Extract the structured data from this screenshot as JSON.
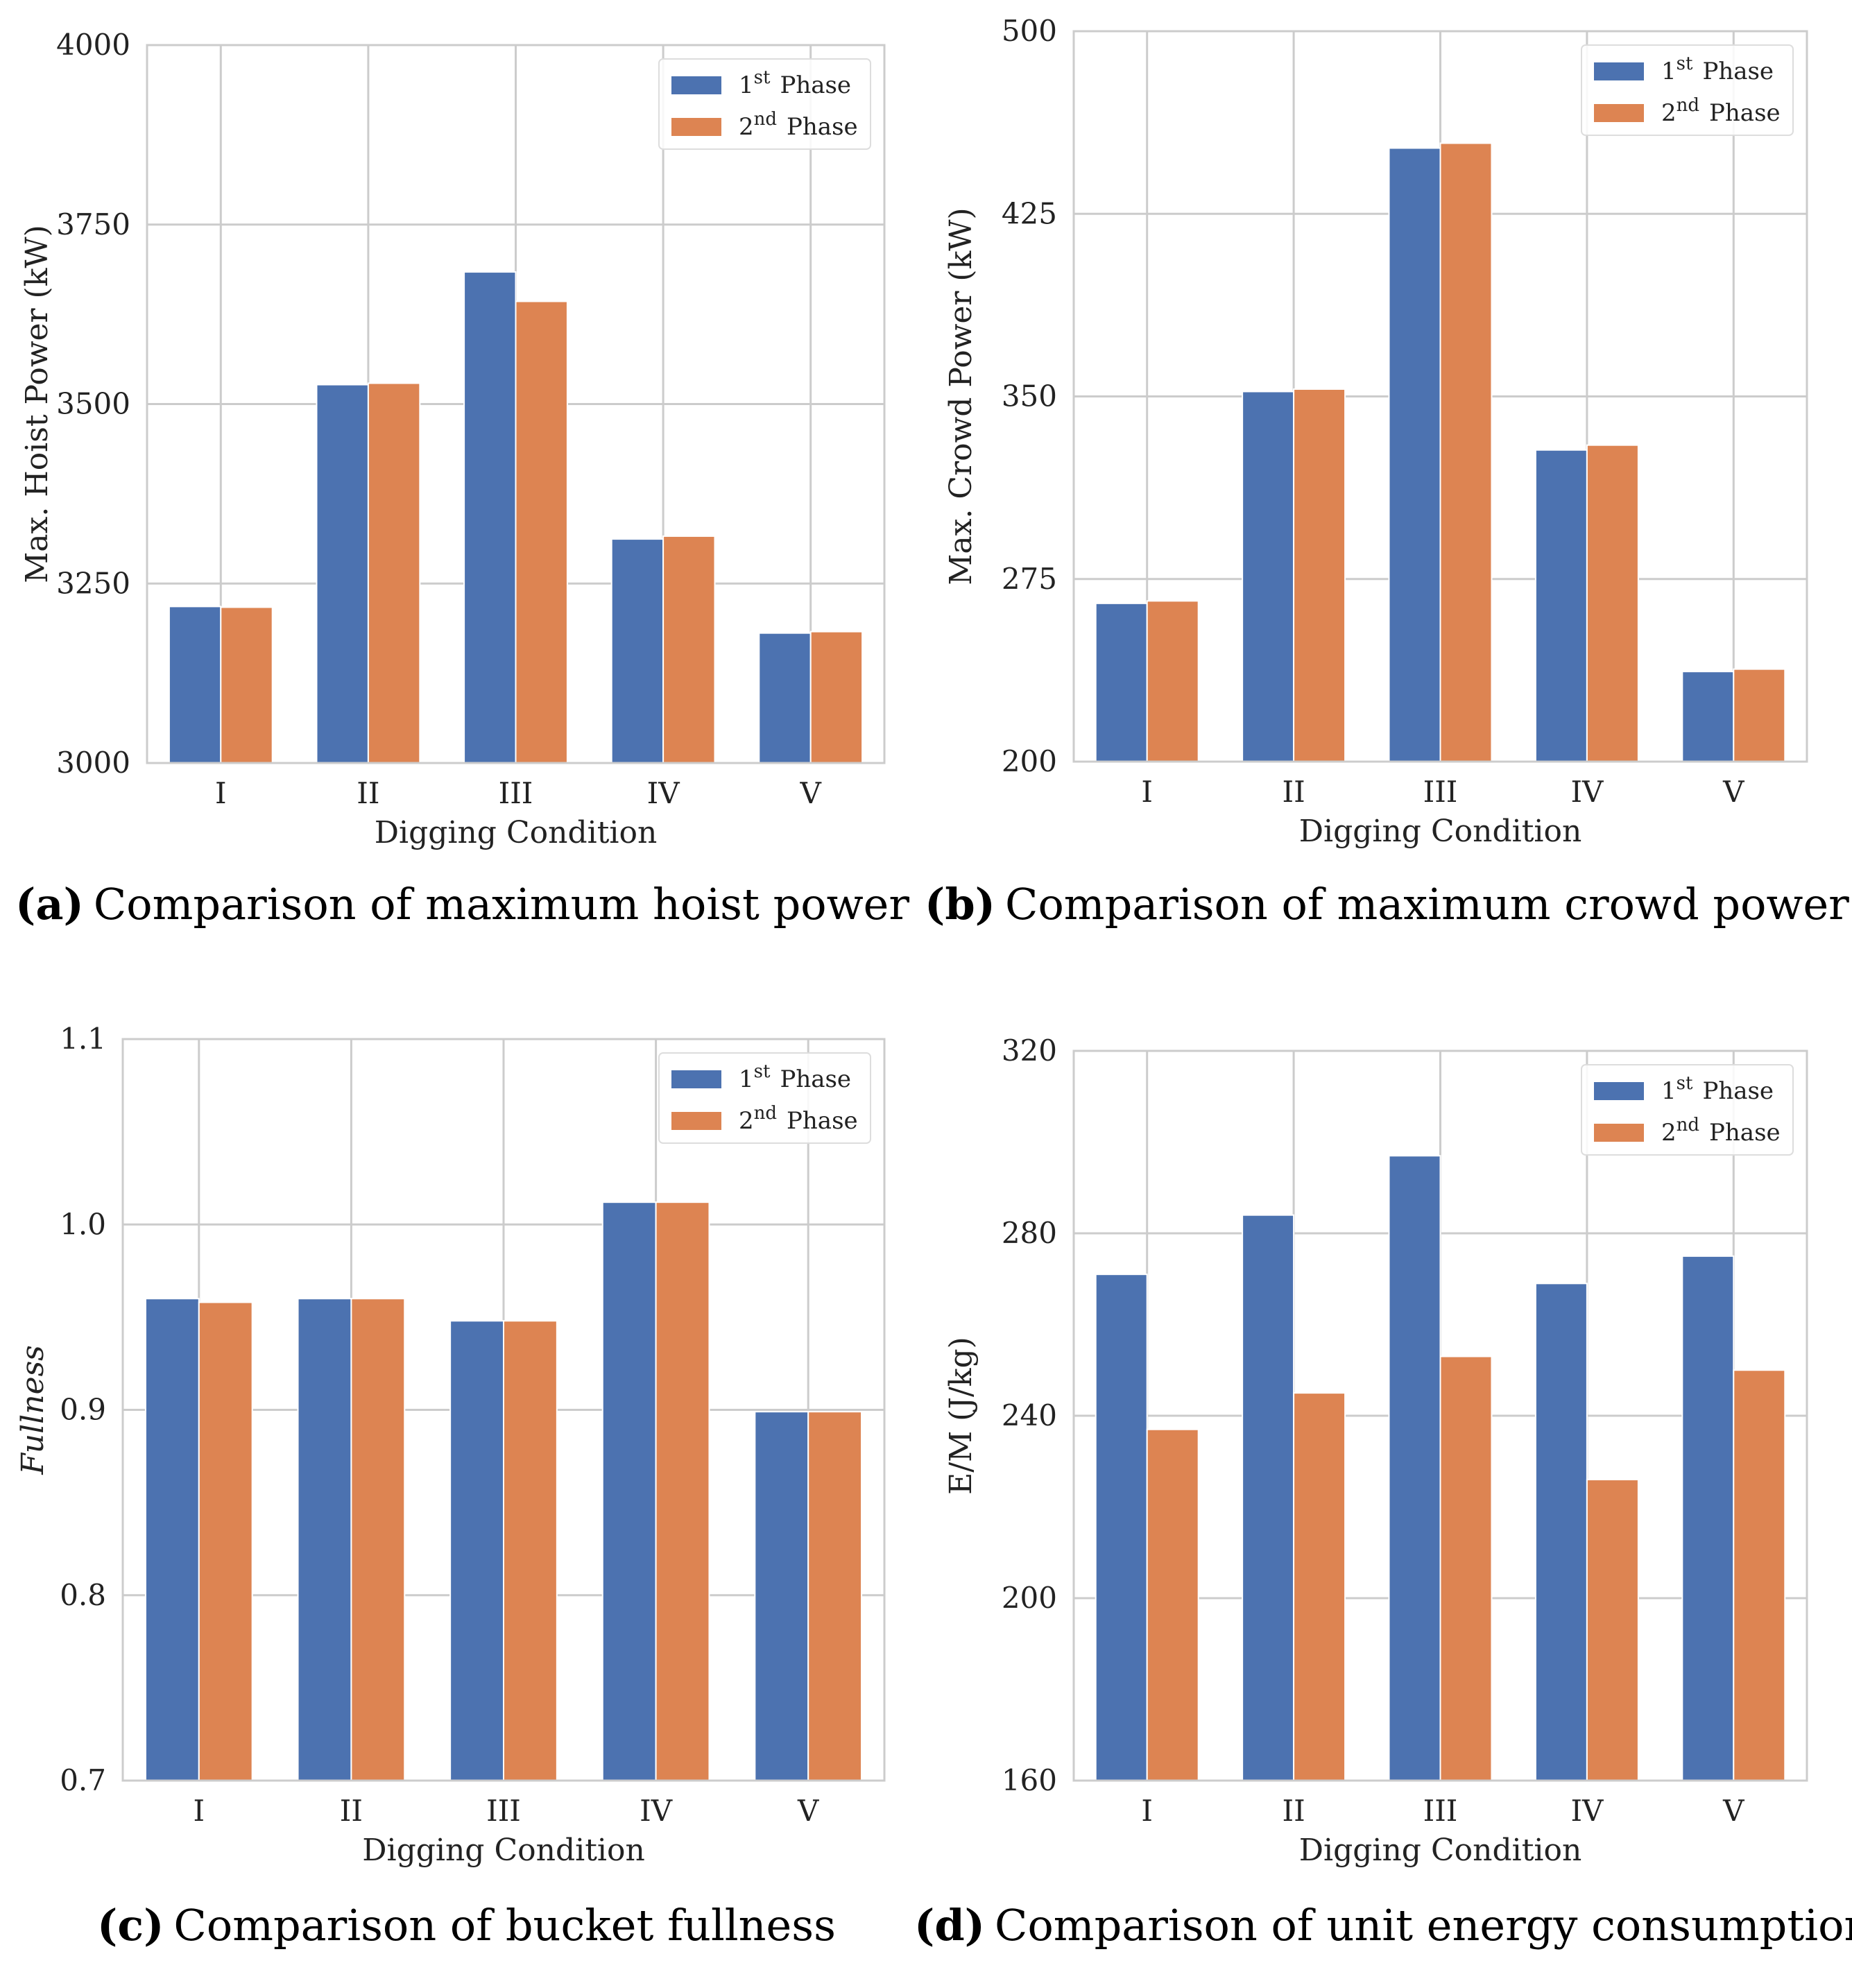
{
  "figure": {
    "colors": {
      "phase1": "#4C72B0",
      "phase2": "#DD8452",
      "grid": "#CCCCCC",
      "frame": "#CCCCCC"
    },
    "legend": {
      "phase1_prefix": "1",
      "phase1_sup": "st",
      "phase1_word": "Phase",
      "phase2_prefix": "2",
      "phase2_sup": "nd",
      "phase2_word": "Phase"
    },
    "panels": [
      {
        "id": "a",
        "caption_letter": "(a)",
        "caption_text": "Comparison of maximum hoist power",
        "chart_data": {
          "type": "bar",
          "title": "",
          "xlabel": "Digging Condition",
          "ylabel": "Max. Hoist Power (kW)",
          "ylabel_italic": false,
          "categories": [
            "I",
            "II",
            "III",
            "IV",
            "V"
          ],
          "series": [
            {
              "name": "1st Phase",
              "values": [
                3218,
                3527,
                3684,
                3312,
                3181
              ]
            },
            {
              "name": "2nd Phase",
              "values": [
                3217,
                3529,
                3643,
                3316,
                3183
              ]
            }
          ],
          "ylim": [
            3000,
            4000
          ],
          "yticks": [
            3000,
            3250,
            3500,
            3750,
            4000
          ],
          "ytick_labels": [
            "3000",
            "3250",
            "3500",
            "3750",
            "4000"
          ],
          "grid": true,
          "legend_position": "top-right"
        }
      },
      {
        "id": "b",
        "caption_letter": "(b)",
        "caption_text": "Comparison of maximum crowd power",
        "chart_data": {
          "type": "bar",
          "title": "",
          "xlabel": "Digging Condition",
          "ylabel": "Max. Crowd Power (kW)",
          "ylabel_italic": false,
          "categories": [
            "I",
            "II",
            "III",
            "IV",
            "V"
          ],
          "series": [
            {
              "name": "1st Phase",
              "values": [
                265,
                352,
                452,
                328,
                237
              ]
            },
            {
              "name": "2nd Phase",
              "values": [
                266,
                353,
                454,
                330,
                238
              ]
            }
          ],
          "ylim": [
            200,
            500
          ],
          "yticks": [
            200,
            275,
            350,
            425,
            500
          ],
          "ytick_labels": [
            "200",
            "275",
            "350",
            "425",
            "500"
          ],
          "grid": true,
          "legend_position": "top-right"
        }
      },
      {
        "id": "c",
        "caption_letter": "(c)",
        "caption_text": "Comparison of bucket fullness",
        "chart_data": {
          "type": "bar",
          "title": "",
          "xlabel": "Digging Condition",
          "ylabel": "Fullness",
          "ylabel_italic": true,
          "categories": [
            "I",
            "II",
            "III",
            "IV",
            "V"
          ],
          "series": [
            {
              "name": "1st Phase",
              "values": [
                0.96,
                0.96,
                0.948,
                1.012,
                0.899
              ]
            },
            {
              "name": "2nd Phase",
              "values": [
                0.958,
                0.96,
                0.948,
                1.012,
                0.899
              ]
            }
          ],
          "ylim": [
            0.7,
            1.1
          ],
          "yticks": [
            0.7,
            0.8,
            0.9,
            1.0,
            1.1
          ],
          "ytick_labels": [
            "0.7",
            "0.8",
            "0.9",
            "1.0",
            "1.1"
          ],
          "grid": true,
          "legend_position": "top-right"
        }
      },
      {
        "id": "d",
        "caption_letter": "(d)",
        "caption_text": "Comparison of unit energy consumption",
        "chart_data": {
          "type": "bar",
          "title": "",
          "xlabel": "Digging Condition",
          "ylabel": "E/M (J/kg)",
          "ylabel_italic": false,
          "categories": [
            "I",
            "II",
            "III",
            "IV",
            "V"
          ],
          "series": [
            {
              "name": "1st Phase",
              "values": [
                271,
                284,
                297,
                269,
                275
              ]
            },
            {
              "name": "2nd Phase",
              "values": [
                237,
                245,
                253,
                226,
                250
              ]
            }
          ],
          "ylim": [
            160,
            320
          ],
          "yticks": [
            160,
            200,
            240,
            280,
            320
          ],
          "ytick_labels": [
            "160",
            "200",
            "240",
            "280",
            "320"
          ],
          "grid": true,
          "legend_position": "top-right"
        }
      }
    ]
  }
}
